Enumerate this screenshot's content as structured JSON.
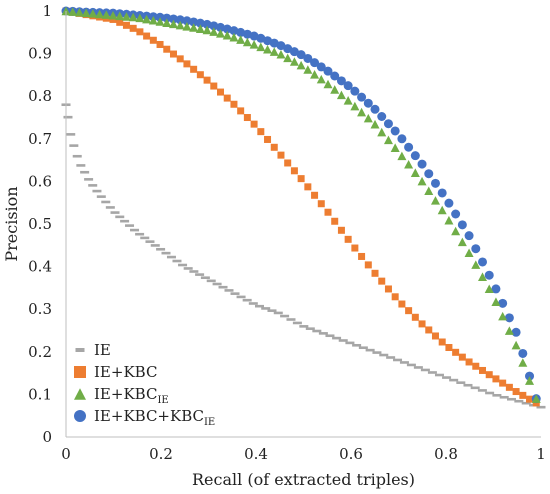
{
  "chart_data": {
    "type": "scatter",
    "title": "",
    "xlabel": "Recall (of extracted triples)",
    "ylabel": "Precision",
    "xlim": [
      0,
      1
    ],
    "ylim": [
      0,
      1
    ],
    "xticks": [
      "0",
      "0.2",
      "0.4",
      "0.6",
      "0.8",
      "1"
    ],
    "yticks": [
      "0",
      "0.1",
      "0.2",
      "0.3",
      "0.4",
      "0.5",
      "0.6",
      "0.7",
      "0.8",
      "0.9",
      "1"
    ],
    "grid": false,
    "legend_position": "bottom-left",
    "series": [
      {
        "name": "IE",
        "sub": "",
        "marker": "dash",
        "color": "#a6a6a6",
        "x": [
          0.0,
          0.01,
          0.02,
          0.03,
          0.05,
          0.07,
          0.1,
          0.15,
          0.2,
          0.25,
          0.3,
          0.35,
          0.4,
          0.45,
          0.5,
          0.55,
          0.6,
          0.65,
          0.7,
          0.75,
          0.8,
          0.85,
          0.9,
          0.95,
          1.0
        ],
        "y": [
          0.78,
          0.71,
          0.67,
          0.64,
          0.6,
          0.57,
          0.53,
          0.48,
          0.44,
          0.4,
          0.37,
          0.34,
          0.31,
          0.29,
          0.26,
          0.24,
          0.22,
          0.2,
          0.18,
          0.16,
          0.14,
          0.12,
          0.1,
          0.085,
          0.07
        ]
      },
      {
        "name": "IE+KBC",
        "sub": "",
        "marker": "square",
        "color": "#ed7d31",
        "x": [
          0.0,
          0.05,
          0.1,
          0.15,
          0.2,
          0.25,
          0.3,
          0.35,
          0.4,
          0.45,
          0.5,
          0.55,
          0.6,
          0.65,
          0.7,
          0.75,
          0.8,
          0.85,
          0.9,
          0.95,
          0.99
        ],
        "y": [
          1.0,
          0.99,
          0.98,
          0.955,
          0.92,
          0.88,
          0.835,
          0.785,
          0.73,
          0.665,
          0.6,
          0.53,
          0.455,
          0.385,
          0.32,
          0.265,
          0.215,
          0.175,
          0.14,
          0.105,
          0.08
        ]
      },
      {
        "name": "IE+KBC",
        "sub": "IE",
        "marker": "triangle",
        "color": "#70ad47",
        "x": [
          0.0,
          0.05,
          0.1,
          0.15,
          0.2,
          0.25,
          0.3,
          0.35,
          0.4,
          0.45,
          0.5,
          0.55,
          0.6,
          0.65,
          0.7,
          0.75,
          0.8,
          0.85,
          0.9,
          0.95,
          0.99
        ],
        "y": [
          1.0,
          0.995,
          0.99,
          0.985,
          0.975,
          0.965,
          0.955,
          0.94,
          0.92,
          0.9,
          0.87,
          0.83,
          0.785,
          0.735,
          0.67,
          0.6,
          0.52,
          0.43,
          0.33,
          0.21,
          0.09
        ]
      },
      {
        "name": "IE+KBC+KBC",
        "sub": "IE",
        "marker": "circle",
        "color": "#4472c4",
        "x": [
          0.0,
          0.05,
          0.1,
          0.15,
          0.2,
          0.25,
          0.3,
          0.35,
          0.4,
          0.45,
          0.5,
          0.55,
          0.6,
          0.65,
          0.7,
          0.75,
          0.8,
          0.85,
          0.9,
          0.95,
          0.99
        ],
        "y": [
          1.0,
          0.997,
          0.995,
          0.99,
          0.985,
          0.978,
          0.968,
          0.955,
          0.94,
          0.92,
          0.895,
          0.86,
          0.82,
          0.77,
          0.71,
          0.64,
          0.56,
          0.47,
          0.36,
          0.24,
          0.09
        ]
      }
    ]
  }
}
